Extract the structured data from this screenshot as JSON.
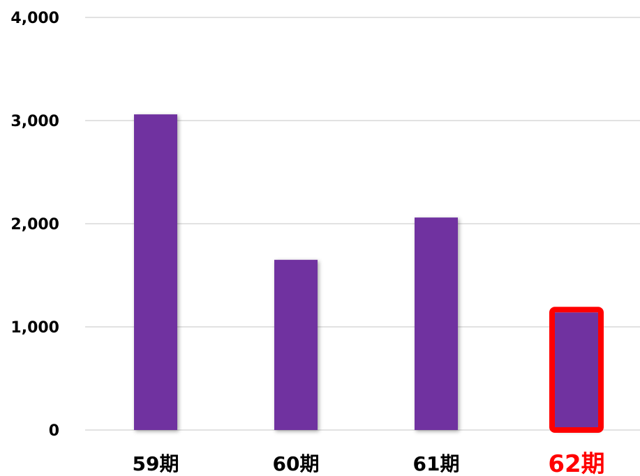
{
  "chart_data": {
    "type": "bar",
    "categories": [
      "59期",
      "60期",
      "61期",
      "62期"
    ],
    "values": [
      3060,
      1650,
      2060,
      1140
    ],
    "ylim": [
      0,
      4000
    ],
    "yticks": [
      "0",
      "1,000",
      "2,000",
      "3,000",
      "4,000"
    ],
    "ytick_values": [
      0,
      1000,
      2000,
      3000,
      4000
    ],
    "grid": true,
    "highlight_index": 3,
    "colors": {
      "bar": "#7030a0",
      "highlight": "#ff0000",
      "grid": "#d9d9d9",
      "text": "#000000"
    }
  }
}
